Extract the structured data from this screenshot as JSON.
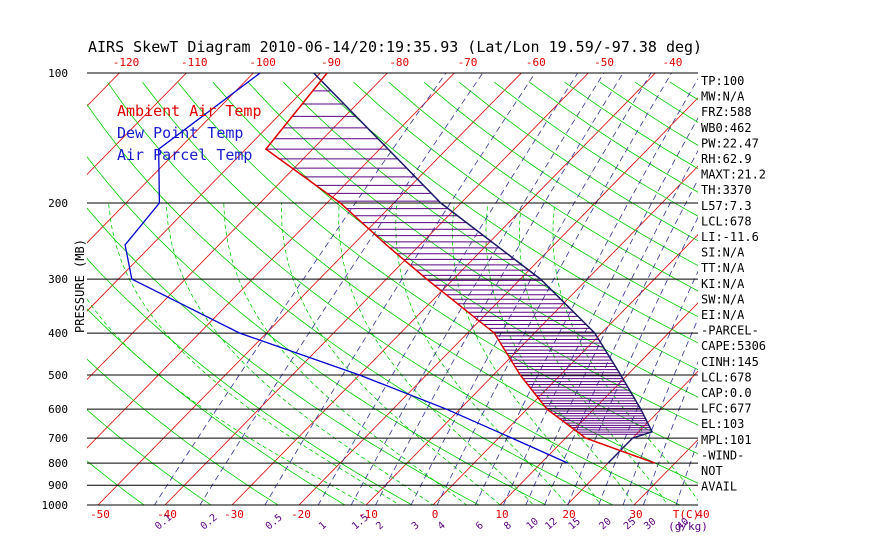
{
  "title": "AIRS SkewT Diagram 2010-06-14/20:19:35.93 (Lat/Lon 19.59/-97.38 deg)",
  "ylabel": "PRESSURE (MB)",
  "temp_axis_label": "T(C)",
  "mixing_axis_label": "(g/kg)",
  "legend": [
    {
      "label": "Ambient Air Temp",
      "color": "#dd0000"
    },
    {
      "label": "Dew Point Temp",
      "color": "#1a1acc"
    },
    {
      "label": "Air Parcel Temp",
      "color": "#1a1acc"
    }
  ],
  "colors": {
    "temperature": "#dd0000",
    "dewpoint": "#0000cc",
    "parcel": "#1a1a66",
    "cape_hatch": "#5a0080",
    "isotherm": "#dd0000",
    "dry_adiabat": "#00cc00",
    "mixing_ratio": "#333399",
    "moist_adiabat": "#00cc00",
    "isobar": "#000000",
    "top_ticks": "#dd0000",
    "bottom_ticks": "#dd0000"
  },
  "top_ticks": [
    "-120",
    "-110",
    "-100",
    "-90",
    "-80",
    "-70",
    "-60",
    "-50",
    "-40"
  ],
  "bottom_ticks": [
    "-50",
    "-40",
    "-30",
    "-20",
    "-10",
    "0",
    "10",
    "20",
    "30",
    "40"
  ],
  "mixing_ticks": [
    "0.1",
    "0.2",
    "0.5",
    "1",
    "1.5",
    "2",
    "3",
    "4",
    "6",
    "8",
    "10",
    "12",
    "15",
    "20",
    "25",
    "30",
    "40"
  ],
  "pressure_ticks": [
    "100",
    "200",
    "300",
    "400",
    "500",
    "600",
    "700",
    "800",
    "900",
    "1000"
  ],
  "indices": [
    "TP:100",
    "MW:N/A",
    "FRZ:588",
    "WB0:462",
    "PW:22.47",
    "RH:62.9",
    "MAXT:21.2",
    "TH:3370",
    "L57:7.3",
    "LCL:678",
    "LI:-11.6",
    "SI:N/A",
    "TT:N/A",
    "KI:N/A",
    "SW:N/A",
    "EI:N/A",
    "-PARCEL-",
    "CAPE:5306",
    "CINH:145",
    "LCL:678",
    "CAP:0.0",
    "LFC:677",
    "EL:103",
    "MPL:101",
    "-WIND-",
    "NOT",
    "AVAIL"
  ],
  "chart_data": {
    "type": "line",
    "title": "AIRS SkewT Diagram 2010-06-14/20:19:35.93 (Lat/Lon 19.59/-97.38 deg)",
    "ylabel": "PRESSURE (MB)",
    "xlabel": "T(C)",
    "y_scale": "log",
    "ylim": [
      1000,
      100
    ],
    "series": [
      {
        "name": "Ambient Air Temp",
        "points": [
          [
            100,
            -79
          ],
          [
            150,
            -77
          ],
          [
            200,
            -58
          ],
          [
            250,
            -45
          ],
          [
            300,
            -34
          ],
          [
            400,
            -16
          ],
          [
            500,
            -6
          ],
          [
            600,
            3
          ],
          [
            700,
            13
          ],
          [
            800,
            27
          ]
        ]
      },
      {
        "name": "Dew Point Temp",
        "points": [
          [
            100,
            -89
          ],
          [
            150,
            -93
          ],
          [
            200,
            -85
          ],
          [
            250,
            -84
          ],
          [
            300,
            -78
          ],
          [
            400,
            -54
          ],
          [
            500,
            -30
          ],
          [
            600,
            -12
          ],
          [
            700,
            2
          ],
          [
            800,
            14
          ]
        ]
      },
      {
        "name": "Air Parcel Temp",
        "points": [
          [
            100,
            -81
          ],
          [
            200,
            -43
          ],
          [
            300,
            -17
          ],
          [
            400,
            -1
          ],
          [
            500,
            9
          ],
          [
            600,
            17
          ],
          [
            677,
            22
          ],
          [
            700,
            20
          ],
          [
            800,
            20
          ]
        ]
      }
    ]
  }
}
